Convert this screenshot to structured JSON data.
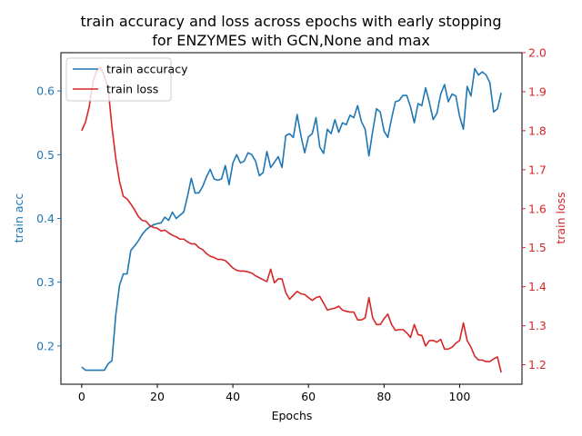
{
  "chart_data": {
    "type": "line",
    "title_line1": "train accuracy and loss across epochs with early stopping",
    "title_line2": "for ENZYMES with GCN,None  and max",
    "xlabel": "Epochs",
    "ylabel_left": "train acc",
    "ylabel_right": "train loss",
    "xlim": [
      -5.5,
      116.5
    ],
    "ylim_left": [
      0.14,
      0.66
    ],
    "ylim_right": [
      1.15,
      2.0
    ],
    "x_ticks": [
      0,
      20,
      40,
      60,
      80,
      100
    ],
    "x_tick_labels": [
      "0",
      "20",
      "40",
      "60",
      "80",
      "100"
    ],
    "y_ticks_left": [
      0.2,
      0.3,
      0.4,
      0.5,
      0.6
    ],
    "y_tick_labels_left": [
      "0.2",
      "0.3",
      "0.4",
      "0.5",
      "0.6"
    ],
    "y_ticks_right": [
      1.2,
      1.3,
      1.4,
      1.5,
      1.6,
      1.7,
      1.8,
      1.9,
      2.0
    ],
    "y_tick_labels_right": [
      "1.2",
      "1.3",
      "1.4",
      "1.5",
      "1.6",
      "1.7",
      "1.8",
      "1.9",
      "2.0"
    ],
    "legend_position": "top-left",
    "grid": false,
    "colors": {
      "acc": "#1f77b4",
      "loss": "#d62728"
    },
    "series": [
      {
        "name": "train accuracy",
        "axis": "left",
        "values": [
          0.167,
          0.162,
          0.162,
          0.162,
          0.162,
          0.162,
          0.162,
          0.172,
          0.177,
          0.248,
          0.295,
          0.313,
          0.313,
          0.35,
          0.357,
          0.365,
          0.375,
          0.382,
          0.387,
          0.39,
          0.392,
          0.393,
          0.402,
          0.397,
          0.41,
          0.4,
          0.405,
          0.41,
          0.435,
          0.463,
          0.44,
          0.44,
          0.45,
          0.465,
          0.477,
          0.462,
          0.46,
          0.462,
          0.483,
          0.453,
          0.487,
          0.5,
          0.487,
          0.49,
          0.503,
          0.5,
          0.49,
          0.467,
          0.472,
          0.505,
          0.48,
          0.488,
          0.497,
          0.48,
          0.53,
          0.533,
          0.527,
          0.563,
          0.53,
          0.503,
          0.528,
          0.533,
          0.558,
          0.512,
          0.502,
          0.54,
          0.533,
          0.555,
          0.535,
          0.55,
          0.547,
          0.562,
          0.558,
          0.577,
          0.552,
          0.54,
          0.498,
          0.537,
          0.572,
          0.567,
          0.537,
          0.527,
          0.557,
          0.583,
          0.585,
          0.593,
          0.593,
          0.575,
          0.55,
          0.58,
          0.577,
          0.605,
          0.582,
          0.555,
          0.565,
          0.595,
          0.61,
          0.583,
          0.595,
          0.592,
          0.56,
          0.54,
          0.607,
          0.592,
          0.635,
          0.625,
          0.63,
          0.625,
          0.613,
          0.567,
          0.572,
          0.597
        ]
      },
      {
        "name": "train loss",
        "axis": "right",
        "values": [
          1.8,
          1.822,
          1.862,
          1.927,
          1.955,
          1.962,
          1.94,
          1.907,
          1.81,
          1.73,
          1.67,
          1.632,
          1.625,
          1.612,
          1.597,
          1.58,
          1.57,
          1.568,
          1.557,
          1.552,
          1.55,
          1.543,
          1.545,
          1.538,
          1.532,
          1.528,
          1.522,
          1.522,
          1.515,
          1.51,
          1.51,
          1.5,
          1.495,
          1.485,
          1.478,
          1.475,
          1.47,
          1.47,
          1.467,
          1.458,
          1.448,
          1.442,
          1.44,
          1.44,
          1.438,
          1.435,
          1.428,
          1.423,
          1.418,
          1.413,
          1.445,
          1.41,
          1.42,
          1.42,
          1.385,
          1.368,
          1.378,
          1.388,
          1.382,
          1.38,
          1.372,
          1.365,
          1.372,
          1.375,
          1.358,
          1.34,
          1.343,
          1.345,
          1.35,
          1.34,
          1.337,
          1.335,
          1.335,
          1.315,
          1.315,
          1.32,
          1.372,
          1.32,
          1.303,
          1.303,
          1.318,
          1.33,
          1.303,
          1.288,
          1.29,
          1.29,
          1.282,
          1.27,
          1.303,
          1.277,
          1.275,
          1.248,
          1.262,
          1.262,
          1.258,
          1.265,
          1.24,
          1.24,
          1.245,
          1.255,
          1.262,
          1.307,
          1.262,
          1.245,
          1.222,
          1.212,
          1.212,
          1.208,
          1.208,
          1.215,
          1.22,
          1.18
        ]
      }
    ]
  }
}
